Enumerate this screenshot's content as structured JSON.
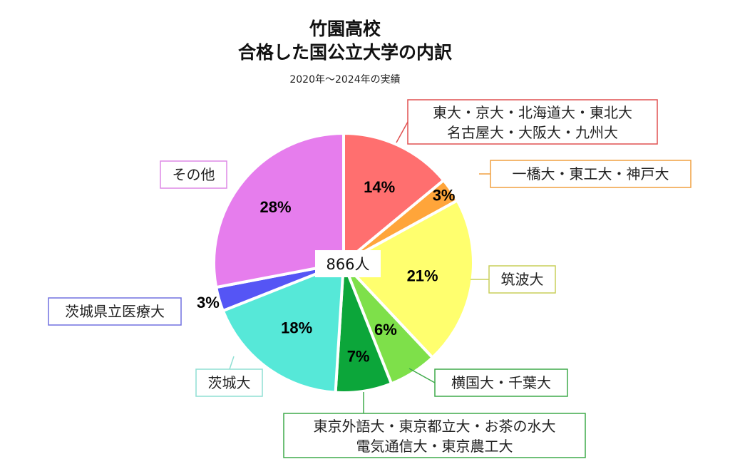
{
  "chart_data": {
    "type": "pie",
    "title": [
      "竹園高校",
      "合格した国公立大学の内訳"
    ],
    "subtitle": "2020年～2024年の実績",
    "total_label": "866人",
    "start_angle_deg": 0,
    "direction": "clockwise",
    "slices": [
      {
        "label": [
          "東大・京大・北海道大・東北大",
          "名古屋大・大阪大・九州大"
        ],
        "value": 14,
        "pct_label": "14%",
        "color": "#ff6f6f",
        "border": "#e05050"
      },
      {
        "label": [
          "一橋大・東工大・神戸大"
        ],
        "value": 3,
        "pct_label": "3%",
        "color": "#ffa53a",
        "border": "#f0a040"
      },
      {
        "label": [
          "筑波大"
        ],
        "value": 21,
        "pct_label": "21%",
        "color": "#ffff6e",
        "border": "#c9cf5a"
      },
      {
        "label": [
          "横国大・千葉大"
        ],
        "value": 6,
        "pct_label": "6%",
        "color": "#7ee04a",
        "border": "#3faa4a"
      },
      {
        "label": [
          "東京外語大・東京都立大・お茶の水大",
          "電気通信大・東京農工大"
        ],
        "value": 7,
        "pct_label": "7%",
        "color": "#0ca63a",
        "border": "#3faa4a"
      },
      {
        "label": [
          "茨城大"
        ],
        "value": 18,
        "pct_label": "18%",
        "color": "#56e8d8",
        "border": "#8fdfd4"
      },
      {
        "label": [
          "茨城県立医療大"
        ],
        "value": 3,
        "pct_label": "3%",
        "color": "#5555f5",
        "border": "#7070e0"
      },
      {
        "label": [
          "その他"
        ],
        "value": 28,
        "pct_label": "28%",
        "color": "#e67ded",
        "border": "#dd88e6"
      }
    ]
  }
}
